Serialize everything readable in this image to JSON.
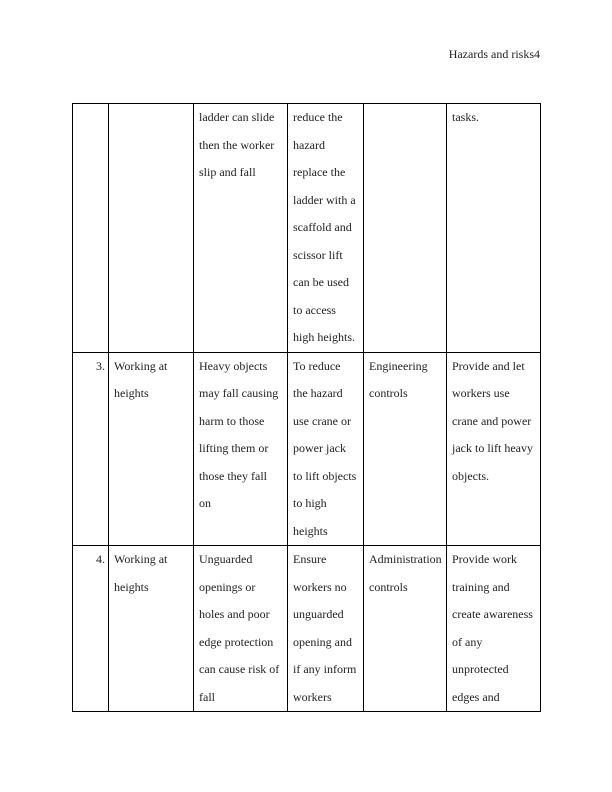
{
  "header": {
    "running_title": "Hazards and risks4"
  },
  "table": {
    "rows": [
      {
        "number": "",
        "cells": [
          [],
          [
            "ladder can slide",
            "then the worker",
            "slip and fall"
          ],
          [
            "reduce the",
            "hazard",
            "replace the",
            "ladder with a",
            "scaffold and",
            "scissor lift",
            "can be used",
            "to access",
            "high heights."
          ],
          [],
          [
            "tasks."
          ]
        ]
      },
      {
        "number": "3.",
        "cells": [
          [
            "Working at",
            "heights"
          ],
          [
            "Heavy objects",
            "may fall causing",
            "harm to those",
            "lifting them or",
            "those  they fall",
            "on"
          ],
          [
            "To reduce",
            "the hazard",
            "use crane or",
            "power jack",
            "to lift objects",
            "to high",
            "heights"
          ],
          [
            "Engineering",
            "controls"
          ],
          [
            "Provide and let",
            "workers use",
            "crane and power",
            "jack to lift heavy",
            "objects."
          ]
        ]
      },
      {
        "number": "4.",
        "cells": [
          [
            "Working at",
            "heights"
          ],
          [
            "Unguarded",
            "openings or",
            "holes and poor",
            "edge protection",
            "can cause risk of",
            "fall"
          ],
          [
            "Ensure",
            "workers no",
            "unguarded",
            "opening and",
            "if any inform",
            "workers"
          ],
          [
            "Administration",
            "controls"
          ],
          [
            "Provide work",
            "training and",
            "create awareness",
            "of any",
            "unprotected",
            "edges and"
          ]
        ]
      }
    ]
  }
}
